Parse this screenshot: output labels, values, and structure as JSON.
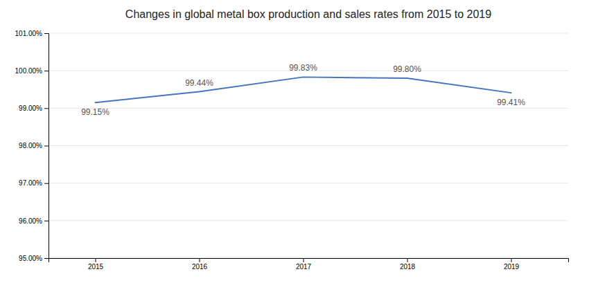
{
  "chart_data": {
    "type": "line",
    "title": "Changes in global metal box production and sales rates from 2015 to 2019",
    "x": [
      2015,
      2016,
      2017,
      2018,
      2019
    ],
    "values": [
      99.15,
      99.44,
      99.83,
      99.8,
      99.41
    ],
    "value_labels": [
      "99.15%",
      "99.44%",
      "99.83%",
      "99.80%",
      "99.41%"
    ],
    "data_labels": true,
    "color": "#4472C4",
    "xlim": [
      2014.55,
      2019.55
    ],
    "xticks": [
      2015,
      2016,
      2017,
      2018,
      2019
    ],
    "ylim": [
      95.0,
      101.0
    ],
    "yticks": [
      {
        "value": 95.0,
        "label": "95.00%"
      },
      {
        "value": 96.0,
        "label": "96.00%"
      },
      {
        "value": 97.0,
        "label": "97.00%"
      },
      {
        "value": 98.0,
        "label": "98.00%"
      },
      {
        "value": 99.0,
        "label": "99.00%"
      },
      {
        "value": 100.0,
        "label": "100.00%"
      },
      {
        "value": 101.0,
        "label": "101.00%"
      }
    ],
    "grid": true
  }
}
